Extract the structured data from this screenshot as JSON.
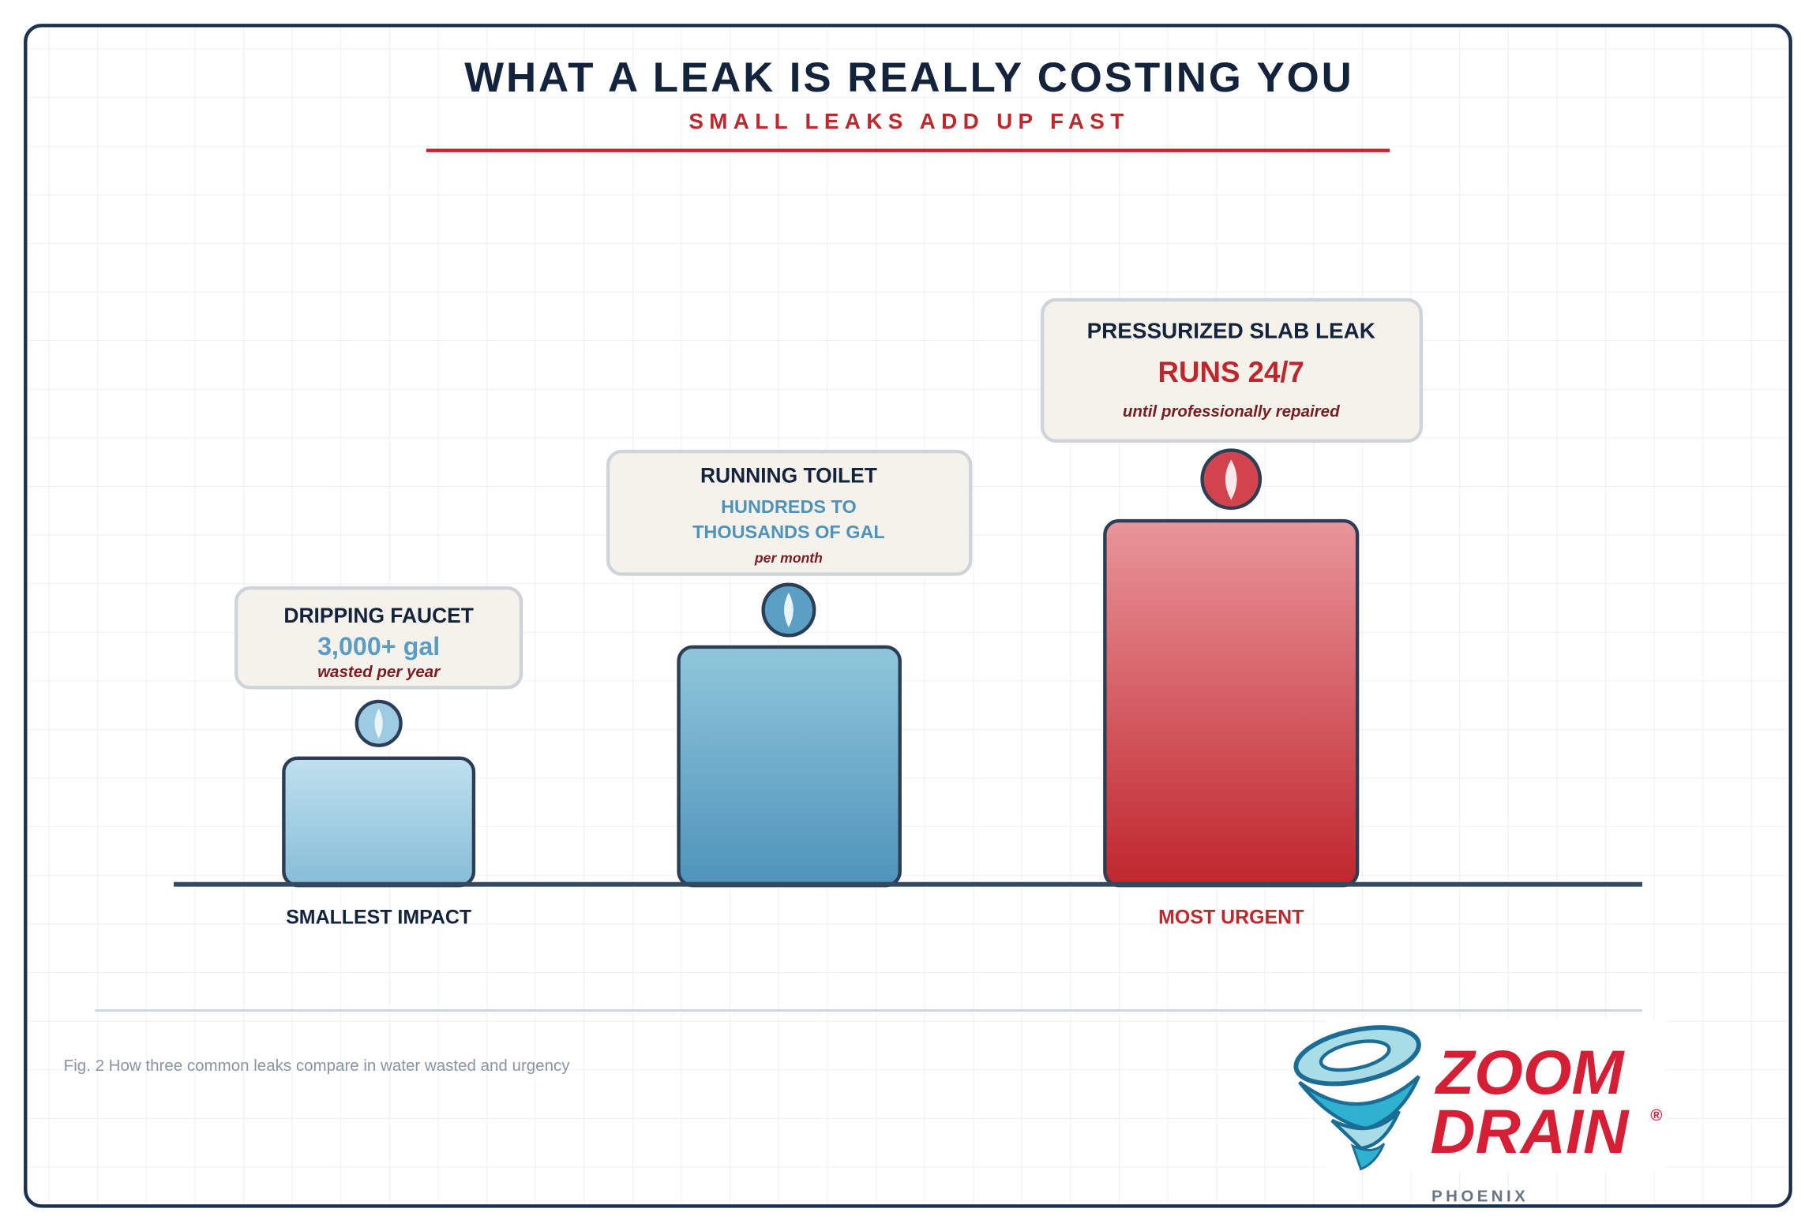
{
  "header": {
    "title": "WHAT A LEAK IS REALLY COSTING YOU",
    "subtitle": "SMALL LEAKS ADD UP FAST"
  },
  "items": [
    {
      "label": "DRIPPING FAUCET",
      "amount": [
        "3,000+ gal"
      ],
      "note": "wasted per year"
    },
    {
      "label": "RUNNING TOILET",
      "amount": [
        "HUNDREDS TO",
        "THOUSANDS OF GAL"
      ],
      "note": "per month"
    },
    {
      "label": "PRESSURIZED SLAB LEAK",
      "amount": [
        "RUNS 24/7"
      ],
      "note": "until professionally repaired"
    }
  ],
  "scale": {
    "low": "SMALLEST IMPACT",
    "high": "MOST URGENT"
  },
  "caption": "Fig. 2 How three common leaks compare in water wasted and urgency",
  "logo": {
    "line1": "ZOOM",
    "line2": "DRAIN",
    "mark": "®",
    "city": "PHOENIX"
  }
}
